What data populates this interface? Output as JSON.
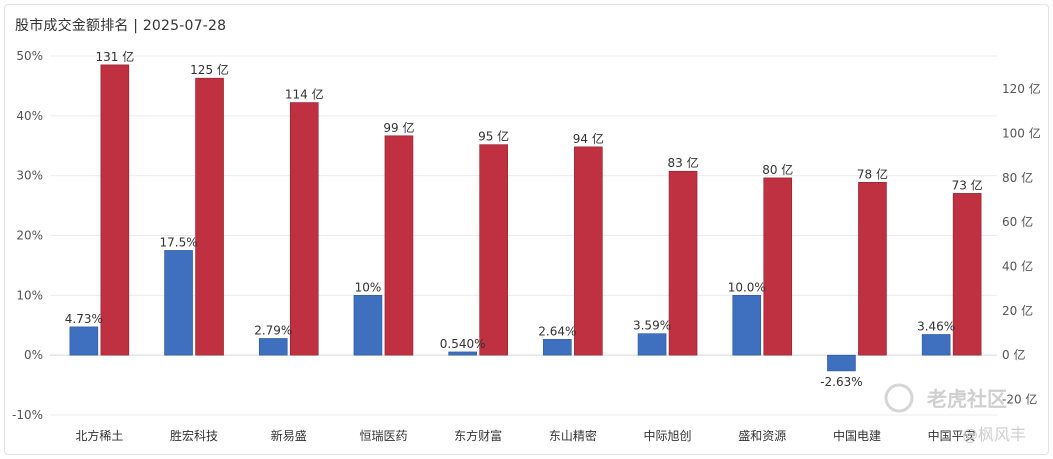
{
  "chart_data": {
    "type": "bar",
    "title": "股市成交金额排名 | 2025-07-28",
    "categories": [
      "北方稀土",
      "胜宏科技",
      "新易盛",
      "恒瑞医药",
      "东方财富",
      "东山精密",
      "中际旭创",
      "盛和资源",
      "中国电建",
      "中国平安"
    ],
    "series": [
      {
        "axis": "left",
        "color": "#3f6fbf",
        "values": [
          4.73,
          17.5,
          2.79,
          10,
          0.54,
          2.64,
          3.59,
          10.0,
          -2.63,
          3.46
        ],
        "labels": [
          "4.73%",
          "17.5%",
          "2.79%",
          "10%",
          "0.540%",
          "2.64%",
          "3.59%",
          "10.0%",
          "-2.63%",
          "3.46%"
        ]
      },
      {
        "axis": "right",
        "color": "#bf3040",
        "values": [
          131,
          125,
          114,
          99,
          95,
          94,
          83,
          80,
          78,
          73
        ],
        "labels": [
          "131 亿",
          "125 亿",
          "114 亿",
          "99 亿",
          "95 亿",
          "94 亿",
          "83 亿",
          "80 亿",
          "78 亿",
          "73 亿"
        ]
      }
    ],
    "y_left": {
      "ylim": [
        -10,
        50
      ],
      "ticks": [
        "50%",
        "40%",
        "30%",
        "20%",
        "10%",
        "0%",
        "-10%"
      ],
      "tick_values": [
        50,
        40,
        30,
        20,
        10,
        0,
        -10
      ]
    },
    "y_right": {
      "ylim": [
        -27,
        135
      ],
      "ticks": [
        "120 亿",
        "100 亿",
        "80 亿",
        "60 亿",
        "40 亿",
        "20 亿",
        "0 亿",
        "-20 亿"
      ],
      "tick_values": [
        120,
        100,
        80,
        60,
        40,
        20,
        0,
        -20
      ]
    },
    "grid": true,
    "legend": "none"
  },
  "watermark": {
    "text": "老虎社区",
    "sub": "@枫风丰"
  }
}
